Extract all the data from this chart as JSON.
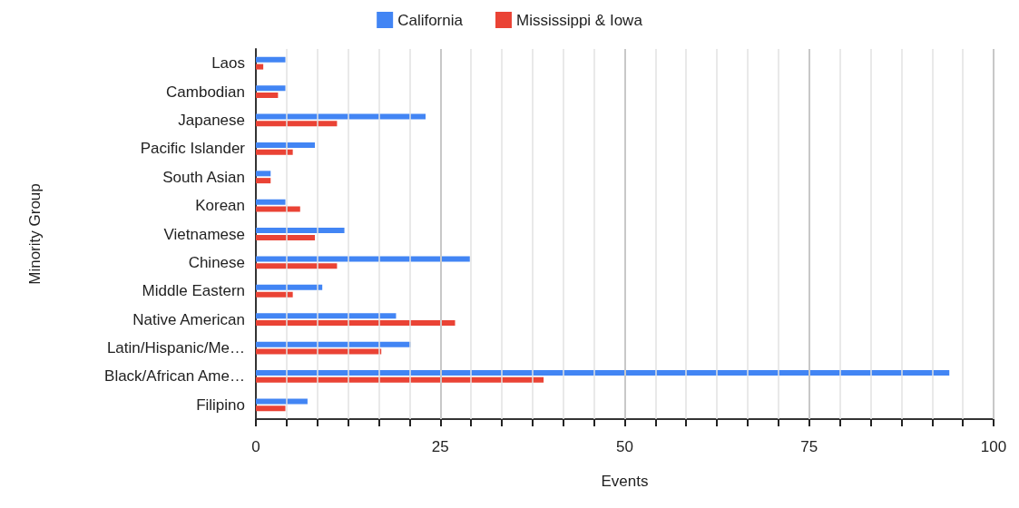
{
  "chart_data": {
    "type": "bar",
    "orientation": "horizontal",
    "xlabel": "Events",
    "ylabel": "Minority Group",
    "categories": [
      "Laos",
      "Cambodian",
      "Japanese",
      "Pacific Islander",
      "South Asian",
      "Korean",
      "Vietnamese",
      "Chinese",
      "Middle Eastern",
      "Native American",
      "Latin/Hispanic/Me…",
      "Black/African Ame…",
      "Filipino"
    ],
    "series": [
      {
        "name": "California",
        "color": "#4285f4",
        "values": [
          4,
          4,
          23,
          8,
          2,
          4,
          12,
          29,
          9,
          19,
          21,
          94,
          7
        ]
      },
      {
        "name": "Mississippi & Iowa",
        "color": "#ea4335",
        "values": [
          1,
          3,
          11,
          5,
          2,
          6,
          8,
          11,
          5,
          27,
          17,
          39,
          4
        ]
      }
    ],
    "xlim": [
      0,
      100
    ],
    "xticks": [
      0,
      {
        "value": 4.17,
        "label": null
      },
      {
        "value": 8.33,
        "label": null
      },
      {
        "value": 12.5,
        "label": null
      },
      {
        "value": 16.67,
        "label": null
      },
      {
        "value": 20.83,
        "label": null
      },
      25,
      {
        "value": 29.17,
        "label": null
      },
      {
        "value": 33.33,
        "label": null
      },
      {
        "value": 37.5,
        "label": null
      },
      {
        "value": 41.67,
        "label": null
      },
      {
        "value": 45.83,
        "label": null
      },
      50,
      {
        "value": 54.17,
        "label": null
      },
      {
        "value": 58.33,
        "label": null
      },
      {
        "value": 62.5,
        "label": null
      },
      {
        "value": 66.67,
        "label": null
      },
      {
        "value": 70.83,
        "label": null
      },
      75,
      {
        "value": 79.17,
        "label": null
      },
      {
        "value": 83.33,
        "label": null
      },
      {
        "value": 87.5,
        "label": null
      },
      {
        "value": 91.67,
        "label": null
      },
      {
        "value": 95.83,
        "label": null
      },
      100
    ],
    "grid": "x",
    "legend": "top"
  }
}
